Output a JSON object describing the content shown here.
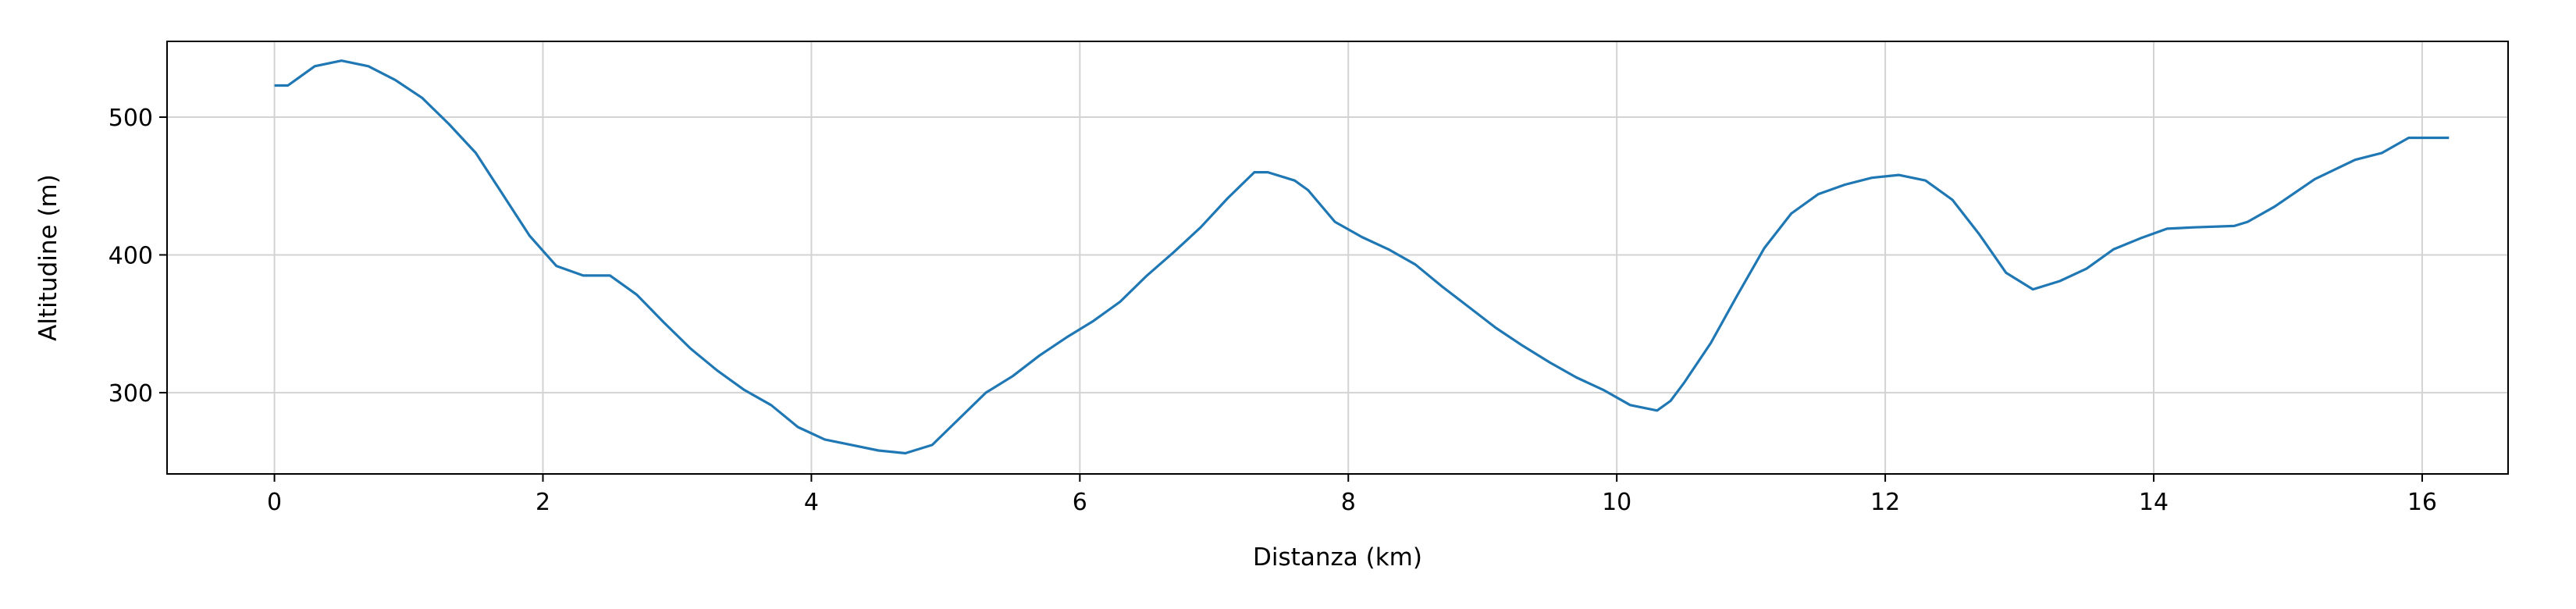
{
  "chart_data": {
    "type": "line",
    "title": "",
    "xlabel": "Distanza (km)",
    "ylabel": "Altitudine (m)",
    "xlim": [
      -0.8,
      16.64
    ],
    "ylim": [
      241,
      555
    ],
    "xticks": [
      0,
      2,
      4,
      6,
      8,
      10,
      12,
      14,
      16
    ],
    "yticks": [
      300,
      400,
      500
    ],
    "grid": true,
    "line_color": "#1f77b4",
    "series": [
      {
        "x": [
          0,
          0.1,
          0.3,
          0.5,
          0.7,
          0.9,
          1.1,
          1.3,
          1.5,
          1.7,
          1.9,
          2.1,
          2.3,
          2.5,
          2.7,
          2.9,
          3.1,
          3.3,
          3.5,
          3.7,
          3.9,
          4.1,
          4.3,
          4.5,
          4.7,
          4.9,
          5.1,
          5.3,
          5.5,
          5.7,
          5.9,
          6.1,
          6.3,
          6.5,
          6.7,
          6.9,
          7.1,
          7.3,
          7.4,
          7.6,
          7.7,
          7.9,
          8.1,
          8.3,
          8.5,
          8.7,
          8.9,
          9.1,
          9.3,
          9.5,
          9.7,
          9.9,
          10.1,
          10.3,
          10.4,
          10.5,
          10.7,
          10.9,
          11.1,
          11.3,
          11.5,
          11.7,
          11.9,
          12.1,
          12.3,
          12.5,
          12.7,
          12.9,
          13.1,
          13.3,
          13.5,
          13.7,
          13.9,
          14.1,
          14.3,
          14.6,
          14.7,
          14.9,
          15.2,
          15.5,
          15.7,
          15.9,
          16.2
        ],
        "y": [
          523,
          523,
          537,
          541,
          537,
          527,
          514,
          495,
          474,
          444,
          414,
          392,
          385,
          385,
          371,
          351,
          332,
          316,
          302,
          291,
          275,
          266,
          262,
          258,
          256,
          262,
          281,
          300,
          312,
          327,
          340,
          352,
          366,
          385,
          402,
          420,
          441,
          460,
          460,
          454,
          447,
          424,
          413,
          404,
          393,
          377,
          362,
          347,
          334,
          322,
          311,
          302,
          291,
          287,
          294,
          307,
          336,
          371,
          405,
          430,
          444,
          451,
          456,
          458,
          454,
          440,
          415,
          387,
          375,
          381,
          390,
          404,
          412,
          419,
          420,
          421,
          424,
          435,
          455,
          469,
          474,
          485,
          485
        ]
      }
    ]
  }
}
